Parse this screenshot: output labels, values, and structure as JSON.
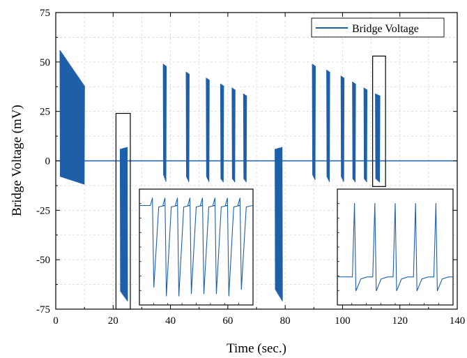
{
  "chart_data": {
    "type": "line",
    "xlabel": "Time (sec.)",
    "ylabel": "Bridge Voltage (mV)",
    "xlim": [
      0,
      140
    ],
    "ylim": [
      -75,
      75
    ],
    "xticks": [
      0,
      20,
      40,
      60,
      80,
      100,
      120,
      140
    ],
    "yticks": [
      -75,
      -50,
      -25,
      0,
      25,
      50,
      75
    ],
    "grid": true,
    "legend_position": "top-right",
    "series": [
      {
        "name": "Bridge Voltage",
        "color": "#1f5fa8",
        "baseline": 0,
        "bursts": [
          {
            "x": [
              1.5,
              10
            ],
            "y_max": [
              56,
              38
            ],
            "y_min": [
              -8,
              -12
            ]
          },
          {
            "x": [
              22.5,
              25
            ],
            "y_max": [
              6,
              7
            ],
            "y_min": [
              -66,
              -71
            ]
          },
          {
            "x": [
              37.5,
              38.5
            ],
            "y_max": [
              49,
              48
            ],
            "y_min": [
              -7,
              -11
            ]
          },
          {
            "x": [
              45.5,
              46.5
            ],
            "y_max": [
              45,
              44
            ],
            "y_min": [
              -8,
              -11
            ]
          },
          {
            "x": [
              52.5,
              53.5
            ],
            "y_max": [
              42,
              41
            ],
            "y_min": [
              -8,
              -11
            ]
          },
          {
            "x": [
              57.5,
              58.5
            ],
            "y_max": [
              39,
              38
            ],
            "y_min": [
              -9,
              -11
            ]
          },
          {
            "x": [
              61.5,
              62.5
            ],
            "y_max": [
              37,
              36
            ],
            "y_min": [
              -9,
              -11
            ]
          },
          {
            "x": [
              65.5,
              66.5
            ],
            "y_max": [
              34,
              33
            ],
            "y_min": [
              -9,
              -11
            ]
          },
          {
            "x": [
              76.5,
              79
            ],
            "y_max": [
              6,
              7
            ],
            "y_min": [
              -65,
              -71
            ]
          },
          {
            "x": [
              89.5,
              90.5
            ],
            "y_max": [
              49,
              48
            ],
            "y_min": [
              -7,
              -10
            ]
          },
          {
            "x": [
              94.5,
              95.5
            ],
            "y_max": [
              46,
              45
            ],
            "y_min": [
              -8,
              -11
            ]
          },
          {
            "x": [
              99.5,
              100.5
            ],
            "y_max": [
              43,
              42
            ],
            "y_min": [
              -8,
              -11
            ]
          },
          {
            "x": [
              103.5,
              104.5
            ],
            "y_max": [
              40,
              39
            ],
            "y_min": [
              -9,
              -11
            ]
          },
          {
            "x": [
              107.5,
              108.5
            ],
            "y_max": [
              37,
              36
            ],
            "y_min": [
              -9,
              -11
            ]
          },
          {
            "x": [
              111.5,
              113
            ],
            "y_max": [
              34,
              33
            ],
            "y_min": [
              -9,
              -11
            ]
          }
        ]
      }
    ],
    "highlight_boxes": [
      {
        "x": [
          21,
          26
        ],
        "y": [
          -75,
          24
        ]
      },
      {
        "x": [
          110.5,
          115
        ],
        "y": [
          -13,
          53
        ]
      }
    ],
    "insets": [
      {
        "source": "highlight_box_1",
        "position": "bottom-center",
        "peak_count": 8,
        "top_level": -26,
        "baseline": -29.5,
        "bottom_levels": [
          -67,
          -71,
          -71,
          -70,
          -70,
          -70,
          -71,
          -68
        ]
      },
      {
        "source": "highlight_box_2",
        "position": "bottom-right",
        "peak_count": 5,
        "top_level": -33,
        "baseline": -54,
        "bottom_level": -58
      }
    ]
  }
}
